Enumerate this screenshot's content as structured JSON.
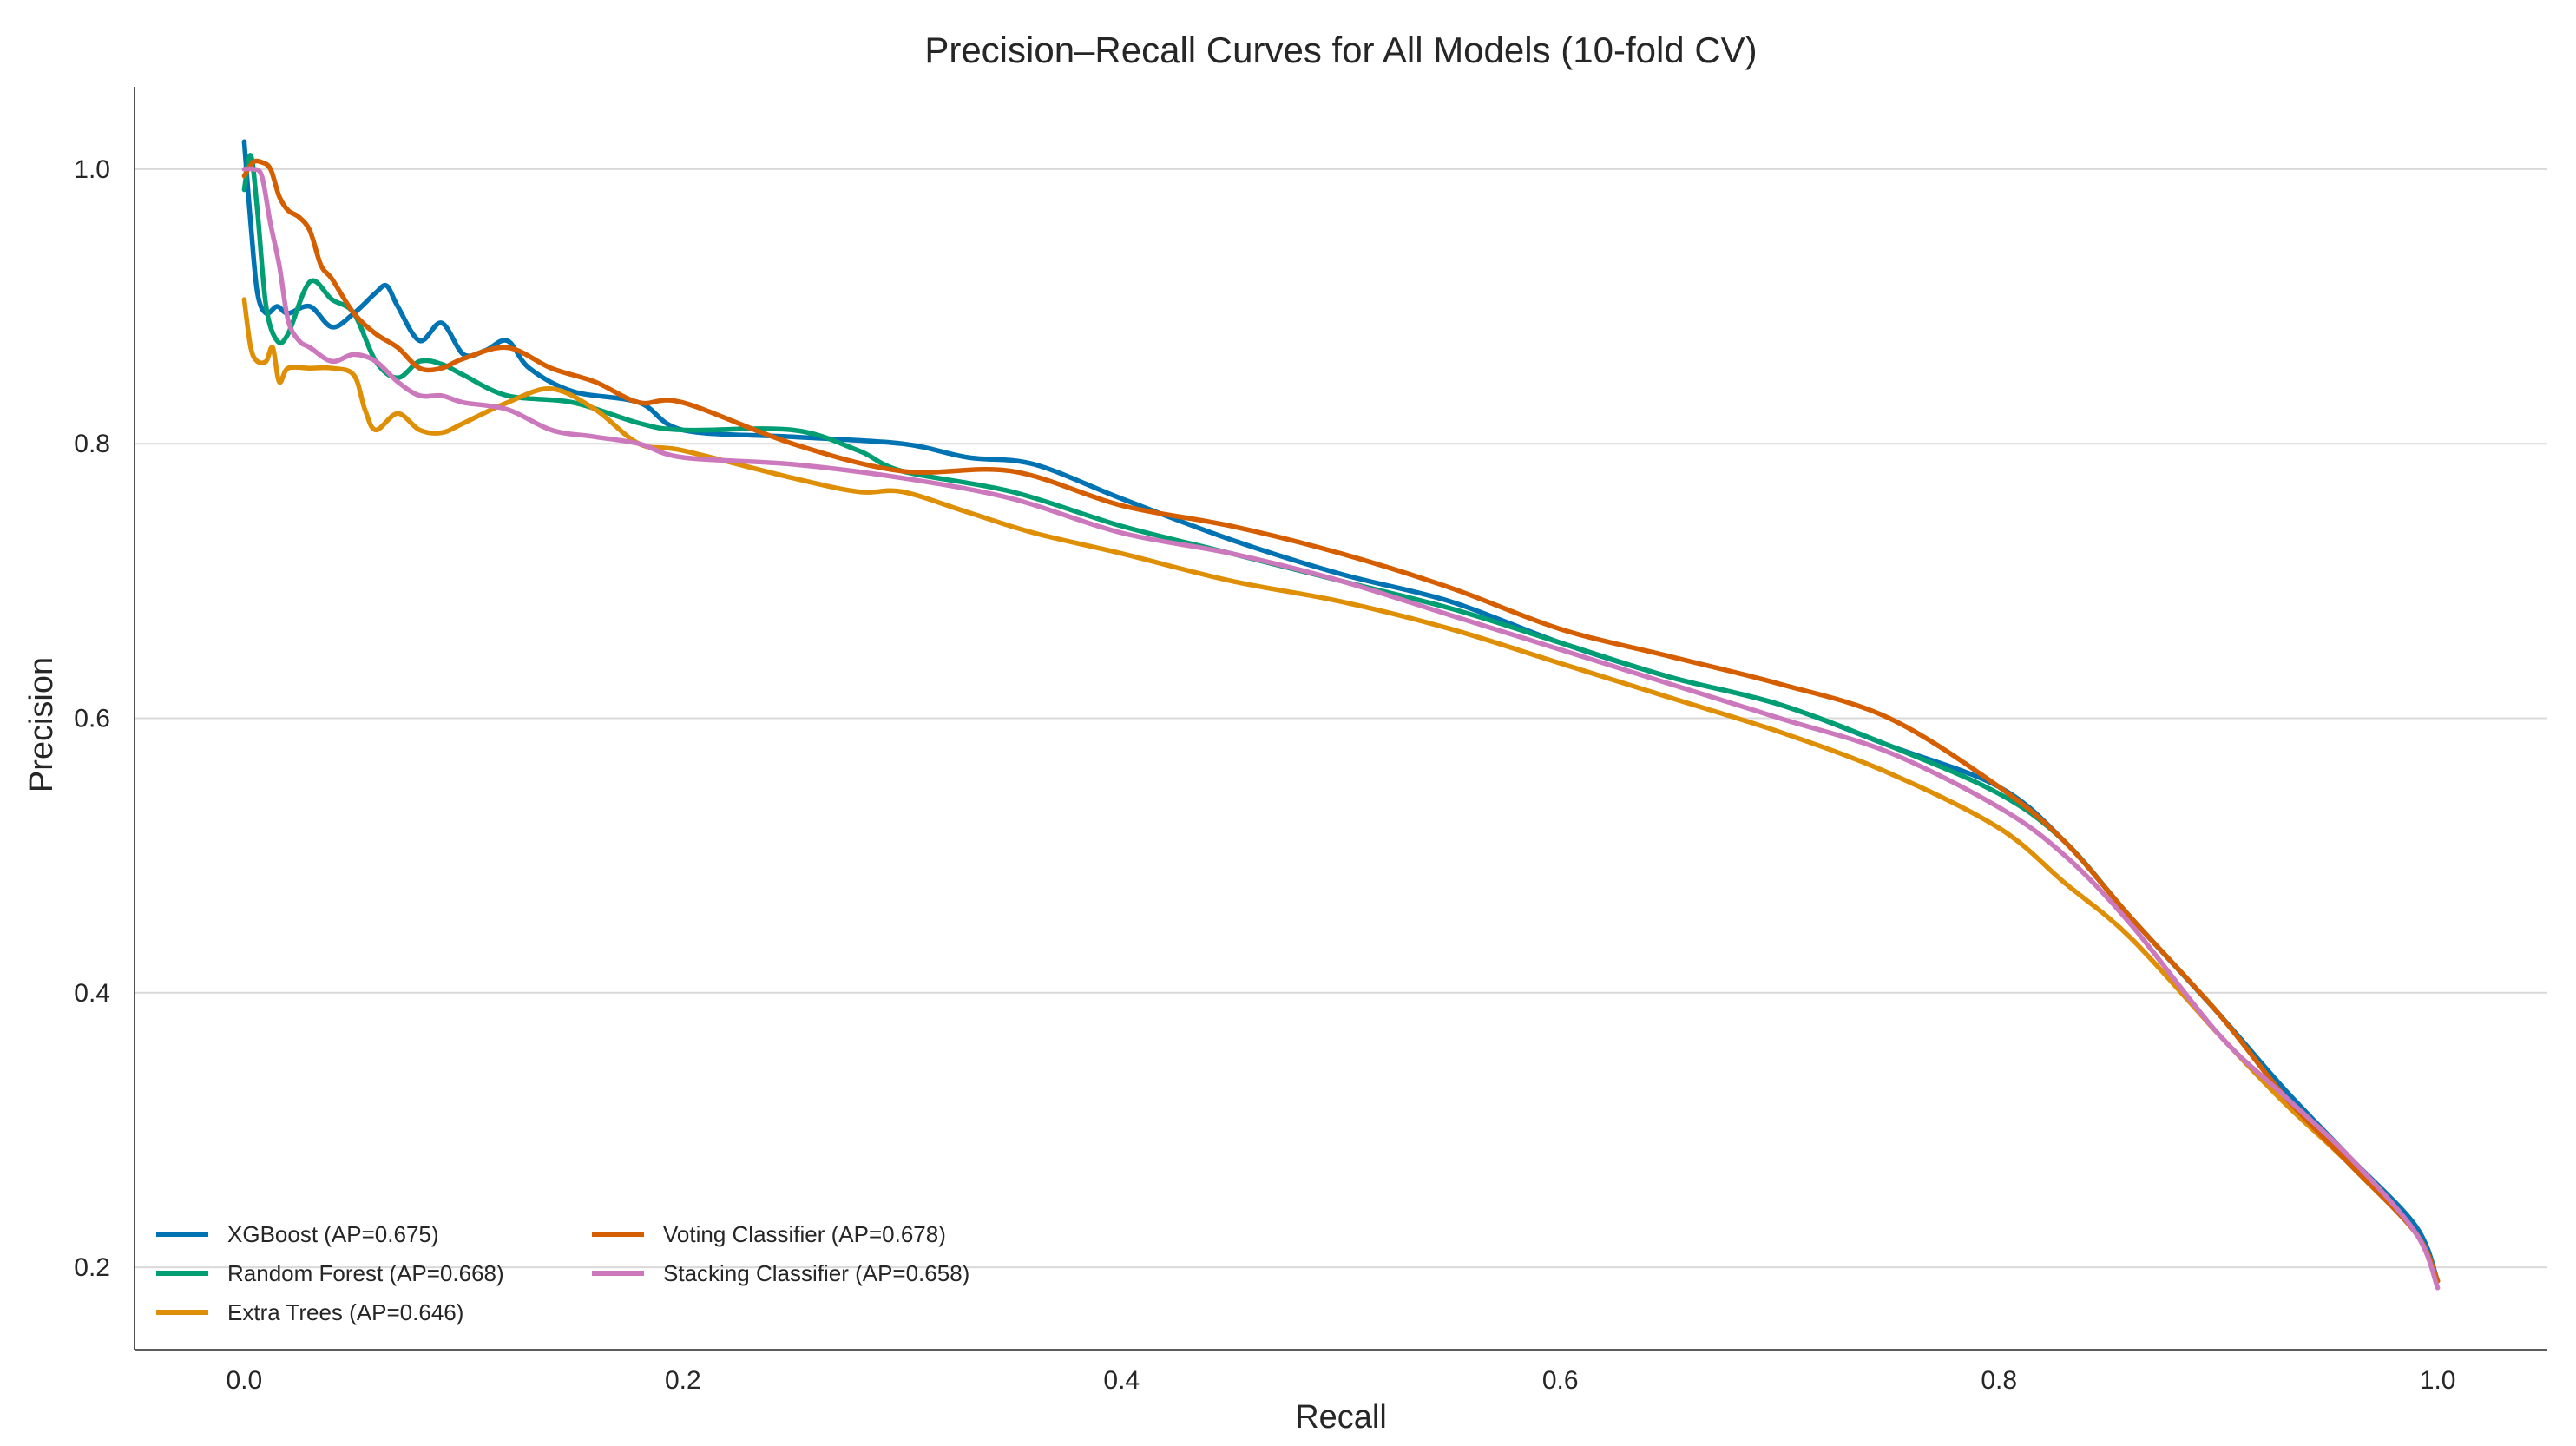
{
  "chart_data": {
    "type": "line",
    "title": "Precision–Recall Curves for All Models (10-fold CV)",
    "xlabel": "Recall",
    "ylabel": "Precision",
    "xlim": [
      -0.05,
      1.05
    ],
    "ylim": [
      0.14,
      1.06
    ],
    "xticks": [
      0.0,
      0.2,
      0.4,
      0.6,
      0.8,
      1.0
    ],
    "xtick_labels": [
      "0.0",
      "0.2",
      "0.4",
      "0.6",
      "0.8",
      "1.0"
    ],
    "yticks": [
      0.2,
      0.4,
      0.6,
      0.8,
      1.0
    ],
    "ytick_labels": [
      "0.2",
      "0.4",
      "0.6",
      "0.8",
      "1.0"
    ],
    "grid": "horizontal",
    "legend_position": "lower-left",
    "series": [
      {
        "name": "XGBoost (AP=0.675)",
        "color": "#0173b2",
        "x": [
          0.0,
          0.003,
          0.006,
          0.01,
          0.015,
          0.02,
          0.03,
          0.04,
          0.05,
          0.06,
          0.065,
          0.07,
          0.08,
          0.09,
          0.1,
          0.11,
          0.12,
          0.13,
          0.15,
          0.18,
          0.2,
          0.25,
          0.3,
          0.33,
          0.36,
          0.4,
          0.45,
          0.5,
          0.55,
          0.6,
          0.65,
          0.7,
          0.75,
          0.8,
          0.83,
          0.86,
          0.9,
          0.93,
          0.96,
          0.99,
          1.0
        ],
        "y": [
          1.02,
          0.96,
          0.91,
          0.895,
          0.9,
          0.895,
          0.9,
          0.885,
          0.895,
          0.91,
          0.915,
          0.9,
          0.875,
          0.888,
          0.865,
          0.868,
          0.875,
          0.855,
          0.838,
          0.83,
          0.81,
          0.805,
          0.8,
          0.79,
          0.785,
          0.76,
          0.73,
          0.705,
          0.685,
          0.655,
          0.63,
          0.61,
          0.58,
          0.55,
          0.51,
          0.455,
          0.385,
          0.33,
          0.28,
          0.23,
          0.19
        ]
      },
      {
        "name": "Random Forest (AP=0.668)",
        "color": "#029e73",
        "x": [
          0.0,
          0.003,
          0.006,
          0.01,
          0.015,
          0.02,
          0.03,
          0.04,
          0.05,
          0.06,
          0.07,
          0.08,
          0.09,
          0.1,
          0.12,
          0.15,
          0.18,
          0.2,
          0.25,
          0.28,
          0.3,
          0.35,
          0.4,
          0.45,
          0.5,
          0.55,
          0.6,
          0.65,
          0.7,
          0.75,
          0.8,
          0.83,
          0.86,
          0.9,
          0.93,
          0.96,
          0.99,
          1.0
        ],
        "y": [
          0.985,
          1.01,
          0.97,
          0.9,
          0.875,
          0.88,
          0.918,
          0.905,
          0.895,
          0.86,
          0.848,
          0.86,
          0.858,
          0.85,
          0.835,
          0.83,
          0.815,
          0.81,
          0.81,
          0.795,
          0.78,
          0.765,
          0.74,
          0.72,
          0.7,
          0.68,
          0.655,
          0.63,
          0.61,
          0.58,
          0.545,
          0.51,
          0.455,
          0.385,
          0.325,
          0.275,
          0.225,
          0.19
        ]
      },
      {
        "name": "Extra Trees (AP=0.646)",
        "color": "#de8f05",
        "x": [
          0.0,
          0.003,
          0.006,
          0.01,
          0.013,
          0.016,
          0.02,
          0.03,
          0.04,
          0.05,
          0.055,
          0.06,
          0.07,
          0.08,
          0.09,
          0.1,
          0.12,
          0.14,
          0.16,
          0.18,
          0.2,
          0.25,
          0.28,
          0.3,
          0.33,
          0.36,
          0.4,
          0.45,
          0.5,
          0.55,
          0.6,
          0.65,
          0.7,
          0.75,
          0.8,
          0.83,
          0.86,
          0.9,
          0.93,
          0.96,
          0.99,
          1.0
        ],
        "y": [
          0.905,
          0.87,
          0.86,
          0.86,
          0.87,
          0.845,
          0.855,
          0.855,
          0.855,
          0.85,
          0.825,
          0.81,
          0.822,
          0.81,
          0.808,
          0.815,
          0.83,
          0.84,
          0.825,
          0.8,
          0.795,
          0.775,
          0.765,
          0.765,
          0.75,
          0.735,
          0.72,
          0.7,
          0.685,
          0.665,
          0.64,
          0.615,
          0.59,
          0.56,
          0.52,
          0.48,
          0.44,
          0.37,
          0.32,
          0.275,
          0.225,
          0.19
        ]
      },
      {
        "name": "Voting Classifier (AP=0.678)",
        "color": "#d55e00",
        "x": [
          0.0,
          0.004,
          0.008,
          0.012,
          0.016,
          0.02,
          0.025,
          0.03,
          0.035,
          0.04,
          0.05,
          0.06,
          0.07,
          0.08,
          0.09,
          0.1,
          0.12,
          0.14,
          0.16,
          0.18,
          0.2,
          0.25,
          0.3,
          0.35,
          0.4,
          0.45,
          0.5,
          0.55,
          0.6,
          0.65,
          0.7,
          0.75,
          0.8,
          0.83,
          0.86,
          0.9,
          0.93,
          0.96,
          0.99,
          1.0
        ],
        "y": [
          0.995,
          1.005,
          1.005,
          1.0,
          0.98,
          0.97,
          0.965,
          0.955,
          0.93,
          0.92,
          0.895,
          0.88,
          0.87,
          0.855,
          0.855,
          0.862,
          0.87,
          0.855,
          0.845,
          0.83,
          0.83,
          0.8,
          0.78,
          0.78,
          0.755,
          0.74,
          0.72,
          0.695,
          0.665,
          0.645,
          0.625,
          0.6,
          0.55,
          0.51,
          0.455,
          0.385,
          0.325,
          0.275,
          0.225,
          0.19
        ]
      },
      {
        "name": "Stacking Classifier (AP=0.658)",
        "color": "#cc78bc",
        "x": [
          0.0,
          0.004,
          0.008,
          0.012,
          0.016,
          0.02,
          0.025,
          0.03,
          0.04,
          0.05,
          0.06,
          0.07,
          0.08,
          0.09,
          0.1,
          0.12,
          0.14,
          0.16,
          0.18,
          0.2,
          0.25,
          0.3,
          0.35,
          0.4,
          0.45,
          0.5,
          0.55,
          0.6,
          0.65,
          0.7,
          0.75,
          0.8,
          0.83,
          0.86,
          0.9,
          0.93,
          0.96,
          0.99,
          1.0
        ],
        "y": [
          1.0,
          1.0,
          0.995,
          0.96,
          0.93,
          0.89,
          0.875,
          0.87,
          0.86,
          0.865,
          0.86,
          0.845,
          0.835,
          0.835,
          0.83,
          0.825,
          0.81,
          0.805,
          0.8,
          0.79,
          0.785,
          0.775,
          0.76,
          0.735,
          0.72,
          0.7,
          0.675,
          0.65,
          0.625,
          0.6,
          0.575,
          0.535,
          0.5,
          0.45,
          0.37,
          0.325,
          0.28,
          0.225,
          0.185
        ]
      }
    ]
  }
}
